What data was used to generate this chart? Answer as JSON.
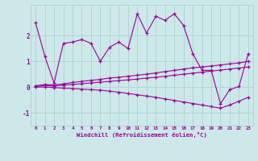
{
  "xlabel": "Windchill (Refroidissement éolien,°C)",
  "bg_color": "#cce8e8",
  "line_color": "#990099",
  "grid_color": "#aacccc",
  "xlim": [
    -0.5,
    23.5
  ],
  "ylim": [
    -1.5,
    3.2
  ],
  "yticks": [
    -1,
    0,
    1,
    2
  ],
  "xticks": [
    0,
    1,
    2,
    3,
    4,
    5,
    6,
    7,
    8,
    9,
    10,
    11,
    12,
    13,
    14,
    15,
    16,
    17,
    18,
    19,
    20,
    21,
    22,
    23
  ],
  "series1_y": [
    2.5,
    1.2,
    0.15,
    1.7,
    1.75,
    1.85,
    1.7,
    1.0,
    1.55,
    1.75,
    1.5,
    2.85,
    2.1,
    2.75,
    2.6,
    2.85,
    2.4,
    1.3,
    0.65,
    0.65,
    -0.65,
    -0.1,
    0.02,
    1.3
  ],
  "series2_y": [
    0.05,
    0.1,
    0.08,
    0.12,
    0.18,
    0.22,
    0.26,
    0.3,
    0.35,
    0.38,
    0.42,
    0.46,
    0.5,
    0.55,
    0.6,
    0.65,
    0.7,
    0.75,
    0.78,
    0.82,
    0.86,
    0.9,
    0.94,
    1.0
  ],
  "series3_y": [
    0.02,
    0.06,
    0.04,
    0.08,
    0.1,
    0.13,
    0.16,
    0.19,
    0.22,
    0.25,
    0.28,
    0.31,
    0.35,
    0.38,
    0.42,
    0.46,
    0.5,
    0.54,
    0.58,
    0.62,
    0.66,
    0.7,
    0.74,
    0.78
  ],
  "series4_y": [
    0.0,
    0.0,
    -0.02,
    -0.04,
    -0.06,
    -0.08,
    -0.1,
    -0.12,
    -0.16,
    -0.2,
    -0.25,
    -0.3,
    -0.35,
    -0.4,
    -0.46,
    -0.52,
    -0.58,
    -0.64,
    -0.7,
    -0.76,
    -0.82,
    -0.7,
    -0.55,
    -0.4
  ]
}
